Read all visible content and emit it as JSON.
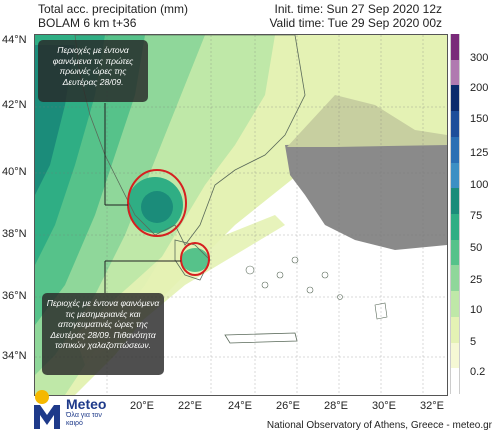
{
  "header": {
    "title_line1": "Total acc. precipitation (mm)",
    "title_line2": "BOLAM 6 km t+36",
    "init_time": "Init. time: Sun 27 Sep 2020 12z",
    "valid_time": "Valid time: Tue 29 Sep 2020 00z"
  },
  "axes": {
    "latitudes": [
      "44°N",
      "42°N",
      "40°N",
      "38°N",
      "36°N",
      "34°N"
    ],
    "longitudes": [
      "20°E",
      "22°E",
      "24°E",
      "26°E",
      "28°E",
      "30°E",
      "32°E"
    ]
  },
  "colorbar": {
    "ticks": [
      "300",
      "200",
      "150",
      "125",
      "100",
      "75",
      "50",
      "25",
      "10",
      "5",
      "0.2"
    ],
    "colors": [
      "#7a2a7a",
      "#b07ab0",
      "#0b2a6b",
      "#1d4e9a",
      "#2a6fb4",
      "#3c8fc4",
      "#1b8c7a",
      "#2fae84",
      "#56c28a",
      "#8fd79a",
      "#bfe8a8",
      "#e4f2b4",
      "#f5f8d4",
      "#ffffff"
    ]
  },
  "annotations": {
    "box1": "Περιοχές με έντονα φαινόμενα τις πρώτες πρωινές ώρες της Δευτέρας 28/09.",
    "box2": "Περιοχές με έντονα φαινόμενα τις μεσημεριανές και απογευματινές ώρες της Δευτέρας 28/09. Πιθανότητα τοπικών χαλαζοπτώσεων."
  },
  "logo": {
    "name": "Meteo",
    "tagline": "Όλα για τον καιρό"
  },
  "footer": "National Observatory of Athens, Greece - meteo.gr"
}
